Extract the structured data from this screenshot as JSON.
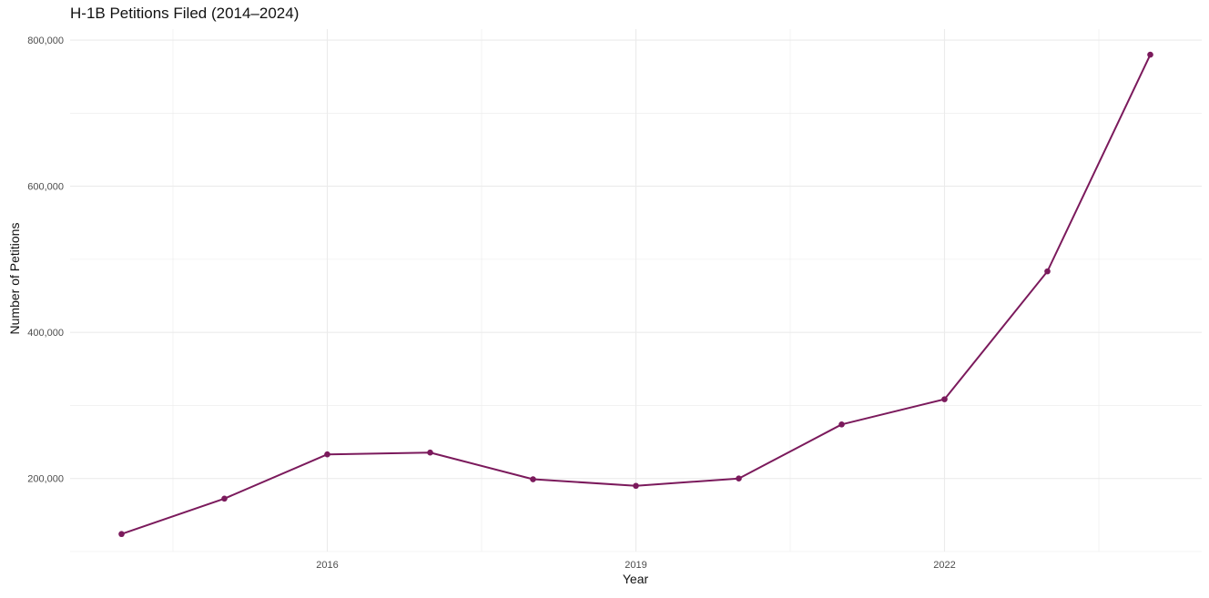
{
  "chart_data": {
    "type": "line",
    "title": "H-1B Petitions Filed (2014–2024)",
    "xlabel": "Year",
    "ylabel": "Number of Petitions",
    "x": [
      2014,
      2015,
      2016,
      2017,
      2018,
      2019,
      2020,
      2021,
      2022,
      2023,
      2024
    ],
    "series": [
      {
        "values": [
          124000,
          172500,
          233000,
          235500,
          199000,
          190000,
          200000,
          274000,
          308500,
          483500,
          780000
        ]
      }
    ],
    "x_ticks": [
      2016,
      2019,
      2022
    ],
    "x_tick_labels": [
      "2016",
      "2019",
      "2022"
    ],
    "y_ticks": [
      200000,
      400000,
      600000,
      800000
    ],
    "y_tick_labels": [
      "200,000",
      "400,000",
      "600,000",
      "800,000"
    ],
    "xlim": [
      2013.5,
      2024.5
    ],
    "ylim": [
      100000,
      815000
    ],
    "grid": true,
    "line_color": "#7b1a5c",
    "grid_color": "#ebebeb"
  }
}
